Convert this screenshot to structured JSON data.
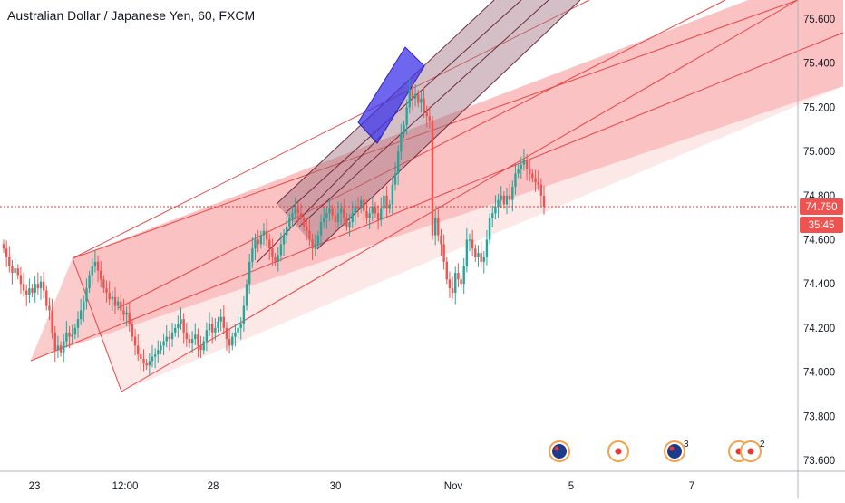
{
  "header": {
    "title": "Australian Dollar / Japanese Yen, 60, FXCM"
  },
  "colors": {
    "up": "#26a69a",
    "down": "#ef5350",
    "channel_fill": "#f7a2a2",
    "channel_line": "#e84545",
    "inner_fill": "#b8848c",
    "inner_line": "#6d2b3e",
    "box_fill": "#4b3fe0",
    "price_line": "#e53935"
  },
  "chart_data": {
    "type": "candlestick",
    "title": "Australian Dollar / Japanese Yen, 60, FXCM",
    "symbol": "AUDJPY",
    "interval": "60",
    "source": "FXCM",
    "ylim": [
      73.55,
      75.68
    ],
    "y_ticks": [
      "75.600",
      "75.400",
      "75.200",
      "75.000",
      "74.800",
      "74.600",
      "74.400",
      "74.200",
      "74.000",
      "73.800",
      "73.600"
    ],
    "x_ticks": [
      "23",
      "12:00",
      "28",
      "30",
      "Nov",
      "5",
      "7"
    ],
    "last_price": "74.750",
    "countdown": "35:45",
    "grid": false,
    "closes": [
      74.56,
      74.52,
      74.48,
      74.45,
      74.47,
      74.44,
      74.4,
      74.37,
      74.35,
      74.38,
      74.36,
      74.4,
      74.38,
      74.41,
      74.37,
      74.3,
      74.28,
      74.18,
      74.1,
      74.12,
      74.09,
      74.14,
      74.18,
      74.16,
      74.17,
      74.2,
      74.24,
      74.28,
      74.32,
      74.38,
      74.44,
      74.48,
      74.5,
      74.46,
      74.42,
      74.38,
      74.36,
      74.33,
      74.34,
      74.3,
      74.32,
      74.28,
      74.26,
      74.27,
      74.22,
      74.16,
      74.12,
      74.08,
      74.06,
      74.04,
      74.03,
      74.05,
      74.07,
      74.08,
      74.1,
      74.12,
      74.14,
      74.16,
      74.15,
      74.18,
      74.2,
      74.22,
      74.24,
      74.18,
      74.15,
      74.13,
      74.15,
      74.17,
      74.12,
      74.1,
      74.14,
      74.19,
      74.22,
      74.18,
      74.2,
      74.23,
      74.25,
      74.2,
      74.15,
      74.12,
      74.16,
      74.18,
      74.2,
      74.22,
      74.3,
      74.4,
      74.5,
      74.56,
      74.6,
      74.58,
      74.62,
      74.64,
      74.6,
      74.56,
      74.52,
      74.5,
      74.53,
      74.58,
      74.62,
      74.66,
      74.7,
      74.72,
      74.74,
      74.72,
      74.7,
      74.66,
      74.64,
      74.6,
      74.56,
      74.58,
      74.62,
      74.68,
      74.7,
      74.72,
      74.74,
      74.71,
      74.68,
      74.72,
      74.74,
      74.7,
      74.66,
      74.68,
      74.72,
      74.75,
      74.74,
      74.78,
      74.73,
      74.7,
      74.72,
      74.75,
      74.72,
      74.69,
      74.74,
      74.8,
      74.74,
      74.76,
      74.85,
      74.9,
      75.0,
      75.08,
      75.12,
      75.2,
      75.28,
      75.24,
      75.26,
      75.22,
      75.24,
      75.18,
      75.16,
      75.14,
      74.62,
      74.7,
      74.62,
      74.58,
      74.5,
      74.42,
      74.38,
      74.36,
      74.45,
      74.42,
      74.4,
      74.48,
      74.6,
      74.6,
      74.56,
      74.52,
      74.54,
      74.5,
      74.52,
      74.6,
      74.7,
      74.72,
      74.75,
      74.78,
      74.8,
      74.76,
      74.8,
      74.78,
      74.84,
      74.9,
      74.92,
      74.94,
      74.96,
      74.92,
      74.9,
      74.88,
      74.86,
      74.85,
      74.8,
      74.75
    ],
    "series": [
      {
        "name": "Parallel channel (outer)"
      },
      {
        "name": "Parallel channel (inner)"
      },
      {
        "name": "Rectangle"
      }
    ]
  },
  "events": [
    {
      "kind": "flags",
      "icon": "australia-flag-icon",
      "count": ""
    },
    {
      "kind": "flag",
      "icon": "japan-flag-icon",
      "count": ""
    },
    {
      "kind": "flags",
      "icon": "australia-flag-icon",
      "count": "3"
    },
    {
      "kind": "flag",
      "icon": "japan-flag-icon",
      "count": "9"
    },
    {
      "kind": "flag",
      "icon": "japan-flag-icon",
      "count": "2"
    }
  ]
}
